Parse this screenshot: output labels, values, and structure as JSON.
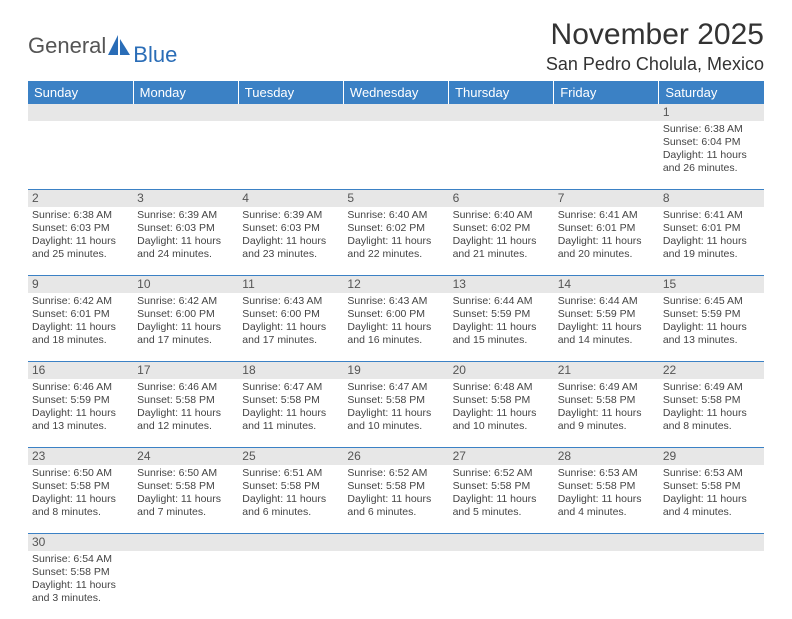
{
  "logo": {
    "text1": "General",
    "text2": "Blue"
  },
  "title": "November 2025",
  "location": "San Pedro Cholula, Mexico",
  "weekdays": [
    "Sunday",
    "Monday",
    "Tuesday",
    "Wednesday",
    "Thursday",
    "Friday",
    "Saturday"
  ],
  "colors": {
    "header_bg": "#3b81c5",
    "header_text": "#ffffff",
    "daynum_bg": "#e7e7e7",
    "border": "#3b81c5",
    "body_text": "#444444",
    "logo_blue": "#2a6db7"
  },
  "weeks": [
    [
      null,
      null,
      null,
      null,
      null,
      null,
      {
        "n": "1",
        "sr": "Sunrise: 6:38 AM",
        "ss": "Sunset: 6:04 PM",
        "d1": "Daylight: 11 hours",
        "d2": "and 26 minutes."
      }
    ],
    [
      {
        "n": "2",
        "sr": "Sunrise: 6:38 AM",
        "ss": "Sunset: 6:03 PM",
        "d1": "Daylight: 11 hours",
        "d2": "and 25 minutes."
      },
      {
        "n": "3",
        "sr": "Sunrise: 6:39 AM",
        "ss": "Sunset: 6:03 PM",
        "d1": "Daylight: 11 hours",
        "d2": "and 24 minutes."
      },
      {
        "n": "4",
        "sr": "Sunrise: 6:39 AM",
        "ss": "Sunset: 6:03 PM",
        "d1": "Daylight: 11 hours",
        "d2": "and 23 minutes."
      },
      {
        "n": "5",
        "sr": "Sunrise: 6:40 AM",
        "ss": "Sunset: 6:02 PM",
        "d1": "Daylight: 11 hours",
        "d2": "and 22 minutes."
      },
      {
        "n": "6",
        "sr": "Sunrise: 6:40 AM",
        "ss": "Sunset: 6:02 PM",
        "d1": "Daylight: 11 hours",
        "d2": "and 21 minutes."
      },
      {
        "n": "7",
        "sr": "Sunrise: 6:41 AM",
        "ss": "Sunset: 6:01 PM",
        "d1": "Daylight: 11 hours",
        "d2": "and 20 minutes."
      },
      {
        "n": "8",
        "sr": "Sunrise: 6:41 AM",
        "ss": "Sunset: 6:01 PM",
        "d1": "Daylight: 11 hours",
        "d2": "and 19 minutes."
      }
    ],
    [
      {
        "n": "9",
        "sr": "Sunrise: 6:42 AM",
        "ss": "Sunset: 6:01 PM",
        "d1": "Daylight: 11 hours",
        "d2": "and 18 minutes."
      },
      {
        "n": "10",
        "sr": "Sunrise: 6:42 AM",
        "ss": "Sunset: 6:00 PM",
        "d1": "Daylight: 11 hours",
        "d2": "and 17 minutes."
      },
      {
        "n": "11",
        "sr": "Sunrise: 6:43 AM",
        "ss": "Sunset: 6:00 PM",
        "d1": "Daylight: 11 hours",
        "d2": "and 17 minutes."
      },
      {
        "n": "12",
        "sr": "Sunrise: 6:43 AM",
        "ss": "Sunset: 6:00 PM",
        "d1": "Daylight: 11 hours",
        "d2": "and 16 minutes."
      },
      {
        "n": "13",
        "sr": "Sunrise: 6:44 AM",
        "ss": "Sunset: 5:59 PM",
        "d1": "Daylight: 11 hours",
        "d2": "and 15 minutes."
      },
      {
        "n": "14",
        "sr": "Sunrise: 6:44 AM",
        "ss": "Sunset: 5:59 PM",
        "d1": "Daylight: 11 hours",
        "d2": "and 14 minutes."
      },
      {
        "n": "15",
        "sr": "Sunrise: 6:45 AM",
        "ss": "Sunset: 5:59 PM",
        "d1": "Daylight: 11 hours",
        "d2": "and 13 minutes."
      }
    ],
    [
      {
        "n": "16",
        "sr": "Sunrise: 6:46 AM",
        "ss": "Sunset: 5:59 PM",
        "d1": "Daylight: 11 hours",
        "d2": "and 13 minutes."
      },
      {
        "n": "17",
        "sr": "Sunrise: 6:46 AM",
        "ss": "Sunset: 5:58 PM",
        "d1": "Daylight: 11 hours",
        "d2": "and 12 minutes."
      },
      {
        "n": "18",
        "sr": "Sunrise: 6:47 AM",
        "ss": "Sunset: 5:58 PM",
        "d1": "Daylight: 11 hours",
        "d2": "and 11 minutes."
      },
      {
        "n": "19",
        "sr": "Sunrise: 6:47 AM",
        "ss": "Sunset: 5:58 PM",
        "d1": "Daylight: 11 hours",
        "d2": "and 10 minutes."
      },
      {
        "n": "20",
        "sr": "Sunrise: 6:48 AM",
        "ss": "Sunset: 5:58 PM",
        "d1": "Daylight: 11 hours",
        "d2": "and 10 minutes."
      },
      {
        "n": "21",
        "sr": "Sunrise: 6:49 AM",
        "ss": "Sunset: 5:58 PM",
        "d1": "Daylight: 11 hours",
        "d2": "and 9 minutes."
      },
      {
        "n": "22",
        "sr": "Sunrise: 6:49 AM",
        "ss": "Sunset: 5:58 PM",
        "d1": "Daylight: 11 hours",
        "d2": "and 8 minutes."
      }
    ],
    [
      {
        "n": "23",
        "sr": "Sunrise: 6:50 AM",
        "ss": "Sunset: 5:58 PM",
        "d1": "Daylight: 11 hours",
        "d2": "and 8 minutes."
      },
      {
        "n": "24",
        "sr": "Sunrise: 6:50 AM",
        "ss": "Sunset: 5:58 PM",
        "d1": "Daylight: 11 hours",
        "d2": "and 7 minutes."
      },
      {
        "n": "25",
        "sr": "Sunrise: 6:51 AM",
        "ss": "Sunset: 5:58 PM",
        "d1": "Daylight: 11 hours",
        "d2": "and 6 minutes."
      },
      {
        "n": "26",
        "sr": "Sunrise: 6:52 AM",
        "ss": "Sunset: 5:58 PM",
        "d1": "Daylight: 11 hours",
        "d2": "and 6 minutes."
      },
      {
        "n": "27",
        "sr": "Sunrise: 6:52 AM",
        "ss": "Sunset: 5:58 PM",
        "d1": "Daylight: 11 hours",
        "d2": "and 5 minutes."
      },
      {
        "n": "28",
        "sr": "Sunrise: 6:53 AM",
        "ss": "Sunset: 5:58 PM",
        "d1": "Daylight: 11 hours",
        "d2": "and 4 minutes."
      },
      {
        "n": "29",
        "sr": "Sunrise: 6:53 AM",
        "ss": "Sunset: 5:58 PM",
        "d1": "Daylight: 11 hours",
        "d2": "and 4 minutes."
      }
    ],
    [
      {
        "n": "30",
        "sr": "Sunrise: 6:54 AM",
        "ss": "Sunset: 5:58 PM",
        "d1": "Daylight: 11 hours",
        "d2": "and 3 minutes."
      },
      null,
      null,
      null,
      null,
      null,
      null
    ]
  ]
}
